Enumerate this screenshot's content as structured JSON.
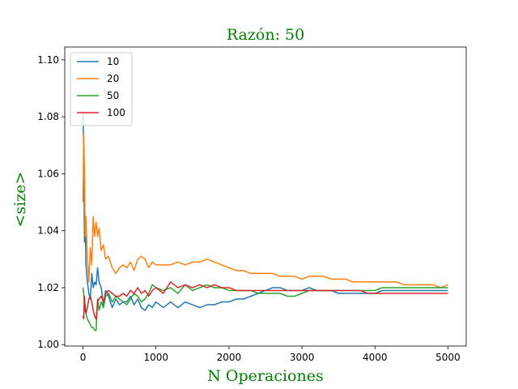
{
  "chart_data": {
    "type": "line",
    "title": "Razón: 50",
    "xlabel": "N Operaciones",
    "ylabel": "<size>",
    "label_color": "#008000",
    "xlim": [
      -250,
      5250
    ],
    "ylim": [
      0.9995,
      1.1045
    ],
    "xticks": [
      0,
      1000,
      2000,
      3000,
      4000,
      5000
    ],
    "yticks": [
      1.0,
      1.02,
      1.04,
      1.06,
      1.08,
      1.1
    ],
    "ytick_labels": [
      "1.00",
      "1.02",
      "1.04",
      "1.06",
      "1.08",
      "1.10"
    ],
    "grid": false,
    "legend_position": "upper-left",
    "series": [
      {
        "name": "10",
        "color": "#1f77b4",
        "x": [
          0,
          10,
          20,
          30,
          40,
          60,
          80,
          100,
          120,
          140,
          160,
          180,
          200,
          220,
          250,
          280,
          310,
          350,
          400,
          450,
          500,
          550,
          600,
          650,
          700,
          750,
          800,
          850,
          900,
          950,
          1000,
          1100,
          1200,
          1300,
          1400,
          1500,
          1600,
          1700,
          1800,
          1900,
          2000,
          2100,
          2200,
          2300,
          2400,
          2500,
          2600,
          2700,
          2800,
          2900,
          3000,
          3100,
          3200,
          3300,
          3400,
          3500,
          3600,
          3700,
          3800,
          3900,
          4000,
          4100,
          4200,
          4300,
          4400,
          4500,
          4600,
          4700,
          4800,
          4900,
          5000
        ],
        "y": [
          1.082,
          1.068,
          1.036,
          1.045,
          1.028,
          1.022,
          1.018,
          1.016,
          1.025,
          1.02,
          1.022,
          1.021,
          1.027,
          1.022,
          1.02,
          1.014,
          1.019,
          1.017,
          1.013,
          1.016,
          1.014,
          1.015,
          1.015,
          1.017,
          1.014,
          1.016,
          1.013,
          1.012,
          1.014,
          1.013,
          1.015,
          1.013,
          1.015,
          1.013,
          1.015,
          1.014,
          1.013,
          1.014,
          1.014,
          1.015,
          1.015,
          1.016,
          1.016,
          1.017,
          1.018,
          1.019,
          1.02,
          1.02,
          1.019,
          1.019,
          1.019,
          1.02,
          1.019,
          1.019,
          1.019,
          1.018,
          1.018,
          1.018,
          1.018,
          1.018,
          1.018,
          1.019,
          1.019,
          1.019,
          1.019,
          1.019,
          1.019,
          1.019,
          1.019,
          1.019,
          1.019
        ]
      },
      {
        "name": "20",
        "color": "#ff7f0e",
        "x": [
          0,
          10,
          20,
          30,
          40,
          60,
          80,
          100,
          120,
          140,
          160,
          180,
          200,
          220,
          250,
          280,
          310,
          350,
          400,
          450,
          500,
          550,
          600,
          650,
          700,
          750,
          800,
          850,
          900,
          950,
          1000,
          1100,
          1200,
          1300,
          1400,
          1500,
          1600,
          1700,
          1800,
          1900,
          2000,
          2100,
          2200,
          2300,
          2400,
          2500,
          2600,
          2700,
          2800,
          2900,
          3000,
          3100,
          3200,
          3300,
          3400,
          3500,
          3600,
          3700,
          3800,
          3900,
          4000,
          4100,
          4200,
          4300,
          4400,
          4500,
          4600,
          4700,
          4800,
          4900,
          5000
        ],
        "y": [
          1.05,
          1.074,
          1.062,
          1.038,
          1.045,
          1.03,
          1.022,
          1.034,
          1.028,
          1.045,
          1.038,
          1.043,
          1.038,
          1.041,
          1.033,
          1.035,
          1.03,
          1.031,
          1.027,
          1.025,
          1.027,
          1.028,
          1.027,
          1.029,
          1.026,
          1.03,
          1.031,
          1.03,
          1.027,
          1.029,
          1.028,
          1.028,
          1.028,
          1.029,
          1.028,
          1.029,
          1.029,
          1.03,
          1.029,
          1.028,
          1.027,
          1.026,
          1.026,
          1.025,
          1.025,
          1.025,
          1.025,
          1.024,
          1.024,
          1.024,
          1.023,
          1.024,
          1.024,
          1.024,
          1.023,
          1.023,
          1.023,
          1.022,
          1.022,
          1.022,
          1.022,
          1.022,
          1.022,
          1.022,
          1.021,
          1.021,
          1.021,
          1.021,
          1.021,
          1.02,
          1.021
        ]
      },
      {
        "name": "50",
        "color": "#2ca02c",
        "x": [
          0,
          10,
          20,
          30,
          40,
          60,
          80,
          100,
          120,
          140,
          160,
          180,
          200,
          220,
          250,
          280,
          310,
          350,
          400,
          450,
          500,
          550,
          600,
          650,
          700,
          750,
          800,
          850,
          900,
          950,
          1000,
          1100,
          1200,
          1300,
          1400,
          1500,
          1600,
          1700,
          1800,
          1900,
          2000,
          2100,
          2200,
          2300,
          2400,
          2500,
          2600,
          2700,
          2800,
          2900,
          3000,
          3100,
          3200,
          3300,
          3400,
          3500,
          3600,
          3700,
          3800,
          3900,
          4000,
          4100,
          4200,
          4300,
          4400,
          4500,
          4600,
          4700,
          4800,
          4900,
          5000
        ],
        "y": [
          1.02,
          1.018,
          1.012,
          1.014,
          1.011,
          1.009,
          1.008,
          1.007,
          1.006,
          1.006,
          1.005,
          1.005,
          1.016,
          1.012,
          1.015,
          1.013,
          1.017,
          1.018,
          1.015,
          1.017,
          1.016,
          1.015,
          1.014,
          1.016,
          1.018,
          1.017,
          1.015,
          1.016,
          1.018,
          1.021,
          1.02,
          1.019,
          1.02,
          1.018,
          1.021,
          1.019,
          1.02,
          1.021,
          1.02,
          1.02,
          1.019,
          1.019,
          1.019,
          1.019,
          1.018,
          1.018,
          1.018,
          1.018,
          1.017,
          1.017,
          1.018,
          1.019,
          1.019,
          1.019,
          1.019,
          1.019,
          1.019,
          1.019,
          1.019,
          1.019,
          1.019,
          1.02,
          1.02,
          1.02,
          1.02,
          1.02,
          1.02,
          1.02,
          1.02,
          1.02,
          1.02
        ]
      },
      {
        "name": "100",
        "color": "#d62728",
        "x": [
          0,
          10,
          20,
          30,
          40,
          60,
          80,
          100,
          120,
          140,
          160,
          180,
          200,
          220,
          250,
          280,
          310,
          350,
          400,
          450,
          500,
          550,
          600,
          650,
          700,
          750,
          800,
          850,
          900,
          950,
          1000,
          1100,
          1200,
          1300,
          1400,
          1500,
          1600,
          1700,
          1800,
          1900,
          2000,
          2100,
          2200,
          2300,
          2400,
          2500,
          2600,
          2700,
          2800,
          2900,
          3000,
          3100,
          3200,
          3300,
          3400,
          3500,
          3600,
          3700,
          3800,
          3900,
          4000,
          4100,
          4200,
          4300,
          4400,
          4500,
          4600,
          4700,
          4800,
          4900,
          5000
        ],
        "y": [
          1.01,
          1.009,
          1.017,
          1.012,
          1.011,
          1.013,
          1.016,
          1.017,
          1.015,
          1.012,
          1.01,
          1.009,
          1.015,
          1.016,
          1.017,
          1.015,
          1.018,
          1.019,
          1.018,
          1.017,
          1.017,
          1.018,
          1.017,
          1.019,
          1.018,
          1.02,
          1.018,
          1.019,
          1.017,
          1.019,
          1.02,
          1.018,
          1.022,
          1.02,
          1.021,
          1.02,
          1.021,
          1.02,
          1.021,
          1.02,
          1.02,
          1.019,
          1.019,
          1.019,
          1.019,
          1.019,
          1.019,
          1.019,
          1.019,
          1.019,
          1.019,
          1.019,
          1.019,
          1.019,
          1.019,
          1.019,
          1.019,
          1.019,
          1.019,
          1.018,
          1.018,
          1.018,
          1.018,
          1.018,
          1.018,
          1.018,
          1.018,
          1.018,
          1.018,
          1.018,
          1.018
        ]
      }
    ]
  }
}
